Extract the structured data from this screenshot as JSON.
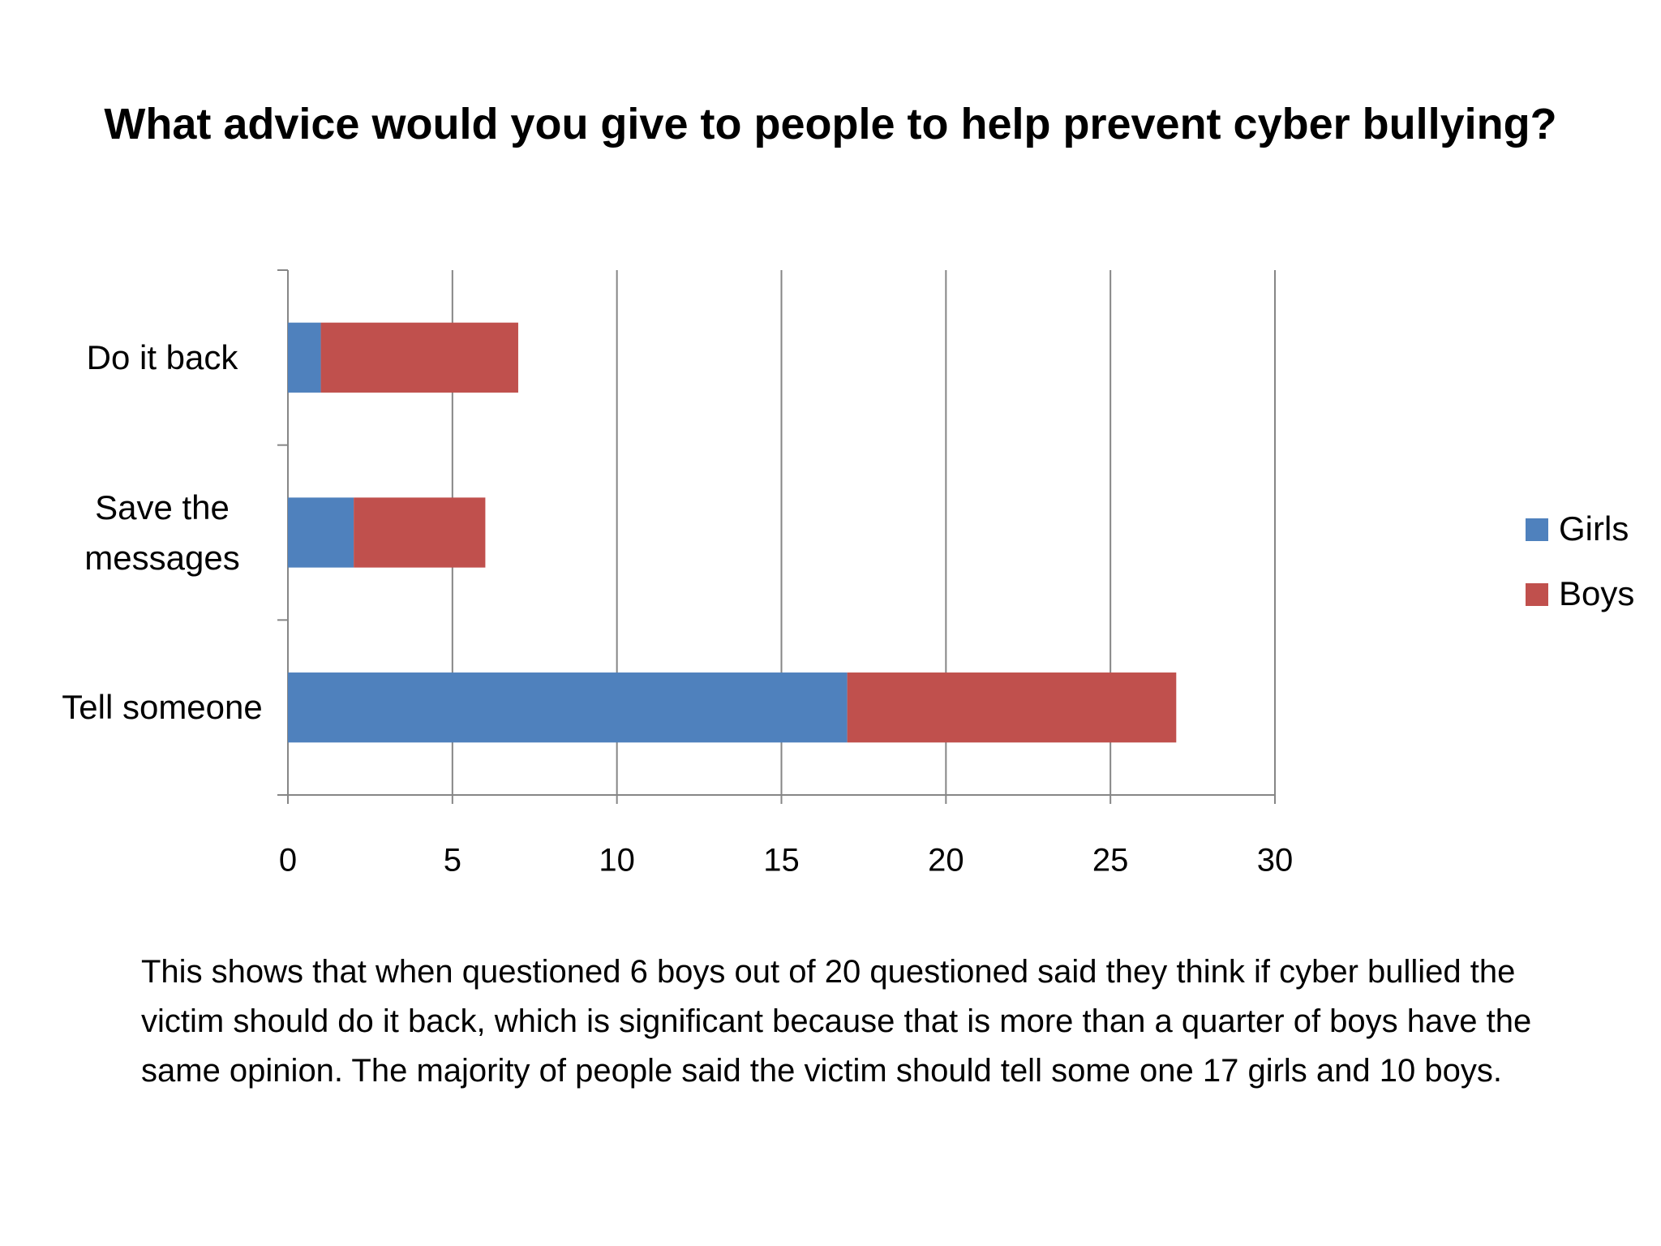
{
  "chart_data": {
    "type": "stacked-barh",
    "title": "What advice would you give to people to help prevent cyber bullying?",
    "categories": [
      "Do it back",
      "Save the messages",
      "Tell someone"
    ],
    "series": [
      {
        "name": "Girls",
        "color": "#4f81bd",
        "values": [
          1,
          2,
          17
        ]
      },
      {
        "name": "Boys",
        "color": "#c0504d",
        "values": [
          6,
          4,
          10
        ]
      }
    ],
    "xlim": [
      0,
      30
    ],
    "xticks": [
      0,
      5,
      10,
      15,
      20,
      25,
      30
    ],
    "grid": true,
    "legend": "right",
    "note": "This shows that when questioned 6 boys out of 20 questioned said they think if cyber bullied the victim should do it back, which is significant because that is more than a quarter of boys have the same opinion. The majority of people said the victim should tell some one 17 girls and 10 boys."
  }
}
